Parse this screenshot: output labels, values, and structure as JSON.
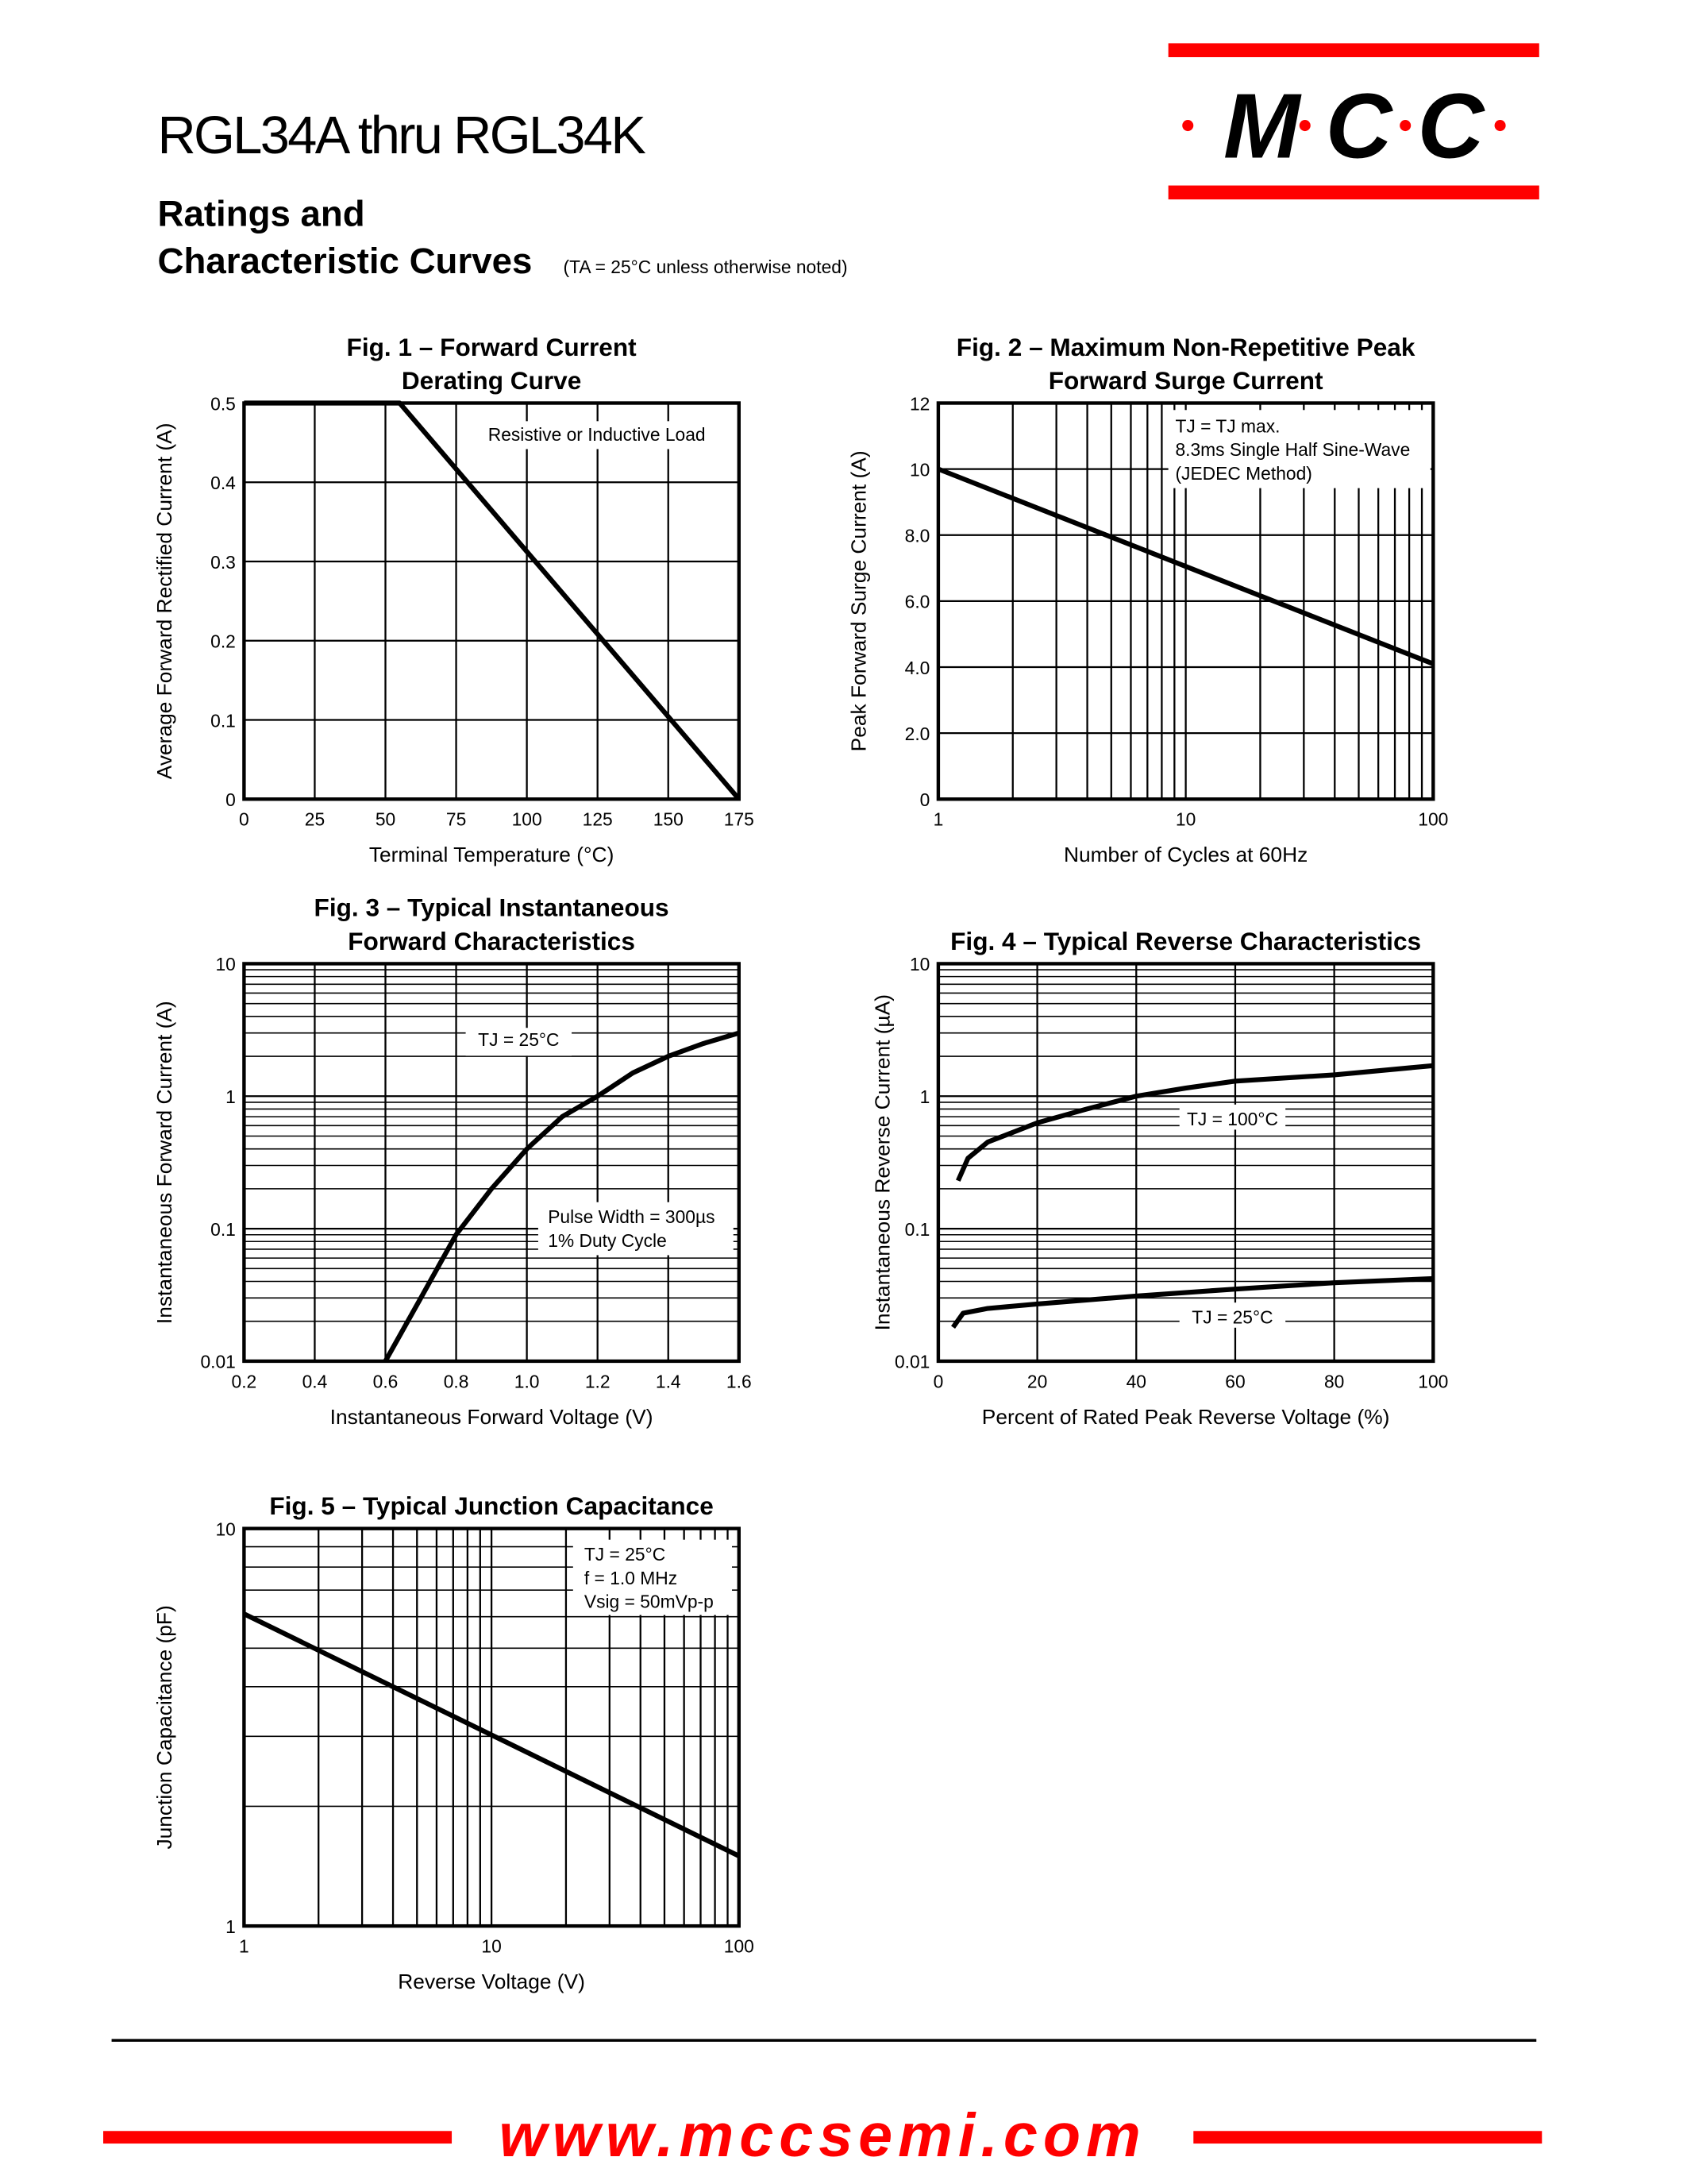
{
  "header": {
    "part_range": "RGL34A thru RGL34K",
    "section_title_1": "Ratings and",
    "section_title_2": "Characteristic Curves",
    "condition_note": "(TA = 25°C unless otherwise noted)",
    "logo_text": "·M·C·C·",
    "brand_color": "#ff0000"
  },
  "footer": {
    "website": "www.mccsemi.com",
    "accent_color": "#ff0000"
  },
  "chart_data": [
    {
      "id": "fig1",
      "type": "line",
      "title": [
        "Fig. 1 – Forward Current",
        "Derating Curve"
      ],
      "xlabel": "Terminal Temperature (°C)",
      "ylabel": "Average Forward Rectified Current (A)",
      "xlim": [
        0,
        175
      ],
      "ylim": [
        0,
        0.5
      ],
      "xscale": "linear",
      "yscale": "linear",
      "xticks": [
        0,
        25,
        50,
        75,
        100,
        125,
        150,
        175
      ],
      "xtick_labels": [
        "0",
        "25",
        "50",
        "75",
        "100",
        "125",
        "150",
        "175"
      ],
      "yticks": [
        0,
        0.1,
        0.2,
        0.3,
        0.4,
        0.5
      ],
      "ytick_labels": [
        "0",
        "0.1",
        "0.2",
        "0.3",
        "0.4",
        "0.5"
      ],
      "grid": true,
      "annotations": [
        "Resistive or Inductive Load"
      ],
      "series": [
        {
          "x": [
            0,
            55,
            175
          ],
          "y": [
            0.5,
            0.5,
            0
          ]
        }
      ]
    },
    {
      "id": "fig2",
      "type": "line",
      "title": [
        "Fig. 2 – Maximum Non-Repetitive Peak",
        "Forward Surge Current"
      ],
      "xlabel": "Number of Cycles at 60Hz",
      "ylabel": "Peak Forward Surge Current (A)",
      "xlim": [
        1,
        100
      ],
      "ylim": [
        0,
        12
      ],
      "xscale": "log",
      "yscale": "linear",
      "xticks": [
        1,
        10,
        100
      ],
      "xtick_labels": [
        "1",
        "10",
        "100"
      ],
      "yticks": [
        0,
        2,
        4,
        6,
        8,
        10,
        12
      ],
      "ytick_labels": [
        "0",
        "2.0",
        "4.0",
        "6.0",
        "8.0",
        "10",
        "12"
      ],
      "grid": true,
      "annotations": [
        "TJ = TJ max.",
        "8.3ms Single Half Sine-Wave",
        "(JEDEC Method)"
      ],
      "series": [
        {
          "x": [
            1,
            100
          ],
          "y": [
            10,
            4.1
          ]
        }
      ]
    },
    {
      "id": "fig3",
      "type": "line",
      "title": [
        "Fig. 3 – Typical Instantaneous",
        "Forward Characteristics"
      ],
      "xlabel": "Instantaneous Forward Voltage (V)",
      "ylabel": "Instantaneous Forward Current (A)",
      "xlim": [
        0.2,
        1.6
      ],
      "ylim": [
        0.01,
        10
      ],
      "xscale": "linear",
      "yscale": "log",
      "xticks": [
        0.2,
        0.4,
        0.6,
        0.8,
        1.0,
        1.2,
        1.4,
        1.6
      ],
      "xtick_labels": [
        "0.2",
        "0.4",
        "0.6",
        "0.8",
        "1.0",
        "1.2",
        "1.4",
        "1.6"
      ],
      "yticks": [
        0.01,
        0.1,
        1,
        10
      ],
      "ytick_labels": [
        "0.01",
        "0.1",
        "1",
        "10"
      ],
      "grid": true,
      "annotations": [
        "TJ = 25°C",
        "Pulse Width = 300µs",
        "1% Duty Cycle"
      ],
      "series": [
        {
          "x": [
            0.6,
            0.7,
            0.8,
            0.9,
            1.0,
            1.1,
            1.2,
            1.3,
            1.4,
            1.5,
            1.6
          ],
          "y": [
            0.01,
            0.03,
            0.09,
            0.2,
            0.4,
            0.7,
            1.0,
            1.5,
            2.0,
            2.5,
            3.0
          ]
        }
      ]
    },
    {
      "id": "fig4",
      "type": "line",
      "title": [
        "Fig. 4 – Typical Reverse Characteristics"
      ],
      "xlabel": "Percent of Rated Peak Reverse Voltage (%)",
      "ylabel": "Instantaneous Reverse Current (µA)",
      "xlim": [
        0,
        100
      ],
      "ylim": [
        0.01,
        10
      ],
      "xscale": "linear",
      "yscale": "log",
      "xticks": [
        0,
        20,
        40,
        60,
        80,
        100
      ],
      "xtick_labels": [
        "0",
        "20",
        "40",
        "60",
        "80",
        "100"
      ],
      "yticks": [
        0.01,
        0.1,
        1,
        10
      ],
      "ytick_labels": [
        "0.01",
        "0.1",
        "1",
        "10"
      ],
      "grid": true,
      "series": [
        {
          "name": "TJ = 100°C",
          "x": [
            4,
            6,
            10,
            20,
            30,
            40,
            50,
            60,
            80,
            100
          ],
          "y": [
            0.23,
            0.34,
            0.45,
            0.63,
            0.8,
            1.0,
            1.15,
            1.3,
            1.45,
            1.7
          ]
        },
        {
          "name": "TJ = 25°C",
          "x": [
            3,
            5,
            10,
            20,
            40,
            60,
            80,
            100
          ],
          "y": [
            0.018,
            0.023,
            0.025,
            0.027,
            0.031,
            0.035,
            0.039,
            0.042
          ]
        }
      ]
    },
    {
      "id": "fig5",
      "type": "line",
      "title": [
        "Fig. 5 – Typical Junction Capacitance"
      ],
      "xlabel": "Reverse Voltage (V)",
      "ylabel": "Junction Capacitance (pF)",
      "xlim": [
        1,
        100
      ],
      "ylim": [
        1,
        10
      ],
      "xscale": "log",
      "yscale": "log",
      "xticks": [
        1,
        10,
        100
      ],
      "xtick_labels": [
        "1",
        "10",
        "100"
      ],
      "yticks": [
        1,
        10
      ],
      "ytick_labels": [
        "1",
        "10"
      ],
      "grid": true,
      "annotations": [
        "TJ = 25°C",
        "f = 1.0 MHz",
        "Vsig = 50mVp-p"
      ],
      "series": [
        {
          "x": [
            1,
            100
          ],
          "y": [
            6.1,
            1.5
          ]
        }
      ]
    }
  ]
}
